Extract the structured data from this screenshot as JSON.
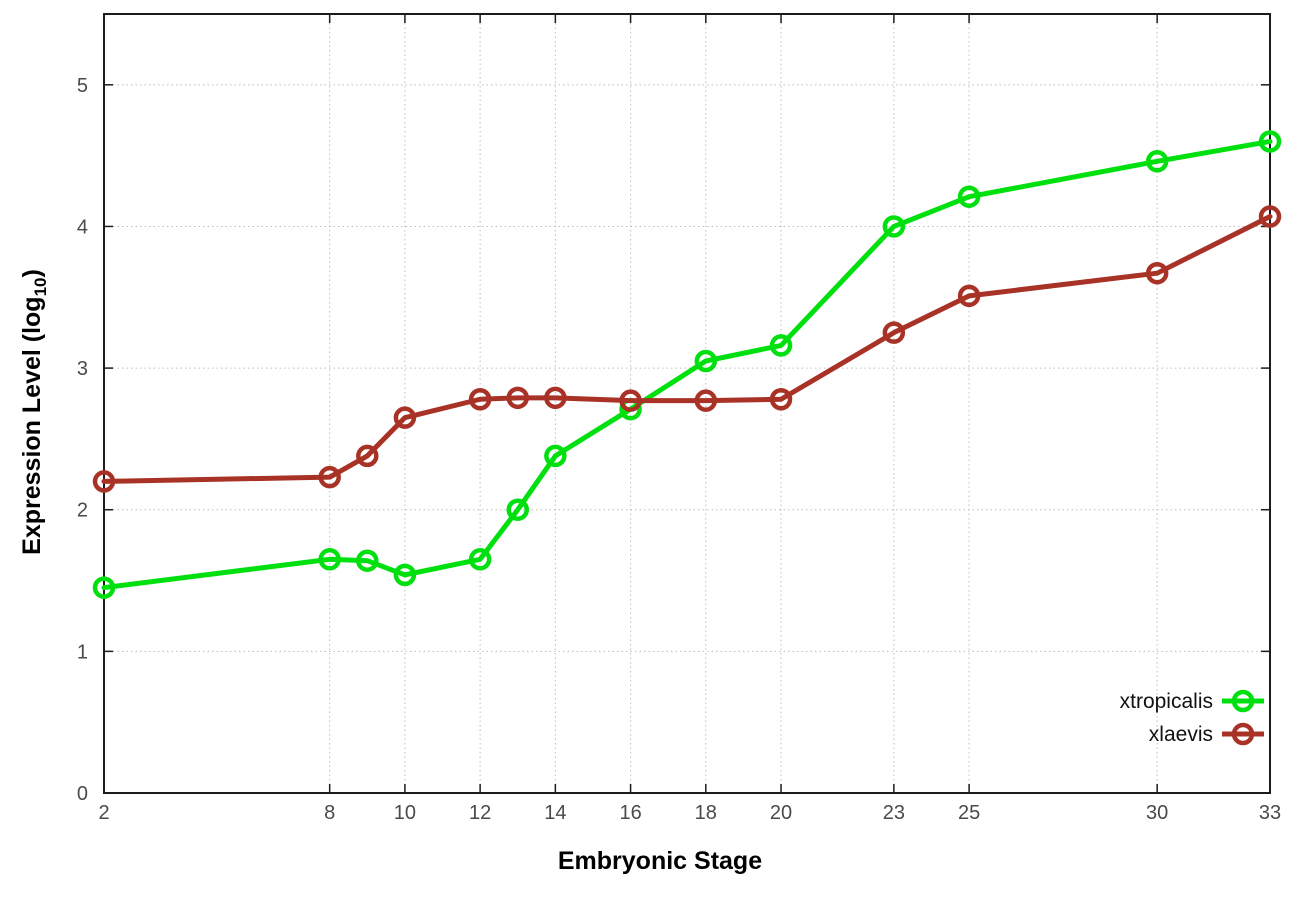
{
  "chart_data": {
    "type": "line",
    "title": "",
    "xlabel": "Embryonic Stage",
    "ylabel": "Expression Level (log10)",
    "ylabel_parts": {
      "prefix": "Expression Level (log",
      "sub": "10",
      "suffix": ")"
    },
    "x": [
      2,
      8,
      9,
      10,
      12,
      13,
      14,
      16,
      18,
      20,
      23,
      25,
      30,
      33
    ],
    "series": [
      {
        "name": "xtropicalis",
        "color": "#00e00e",
        "values": [
          1.45,
          1.65,
          1.64,
          1.54,
          1.65,
          2.0,
          2.38,
          2.71,
          3.05,
          3.16,
          4.0,
          4.21,
          4.46,
          4.6
        ]
      },
      {
        "name": "xlaevis",
        "color": "#a93226",
        "values": [
          2.2,
          2.23,
          2.38,
          2.65,
          2.78,
          2.79,
          2.79,
          2.77,
          2.77,
          2.78,
          3.25,
          3.51,
          3.67,
          4.07
        ]
      }
    ],
    "xticks": [
      2,
      8,
      10,
      12,
      14,
      16,
      18,
      20,
      23,
      25,
      30,
      33
    ],
    "yticks": [
      0,
      1,
      2,
      3,
      4,
      5
    ],
    "xlim": [
      2,
      33
    ],
    "ylim": [
      0,
      5.5
    ],
    "grid": true,
    "legend_position": "inside-bottom-right",
    "marker": "open-circle",
    "colors": {
      "background": "#ffffff",
      "border": "#1c1c1c",
      "grid": "#bdbdbd",
      "tick_label": "#4a4a4a",
      "axis_label": "#000000",
      "legend_text": "#111111"
    }
  }
}
